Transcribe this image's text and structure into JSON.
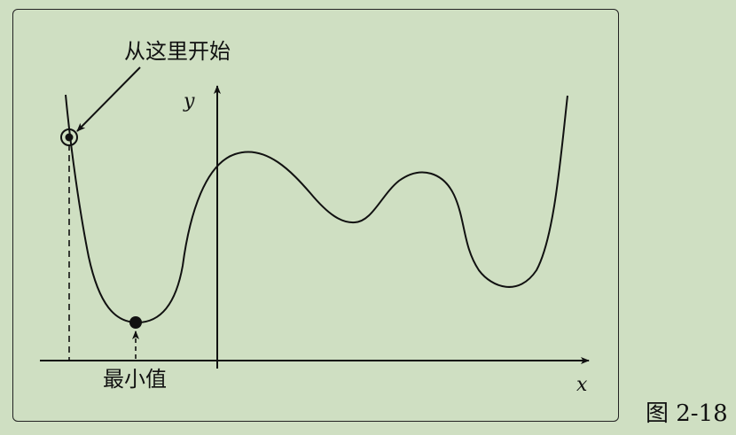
{
  "annotations": {
    "start_label": "从这里开始",
    "min_label": "最小值"
  },
  "axes": {
    "x_label": "x",
    "y_label": "y"
  },
  "caption": "图 2-18",
  "colors": {
    "background": "#cfdfc2",
    "ink": "#111111"
  }
}
